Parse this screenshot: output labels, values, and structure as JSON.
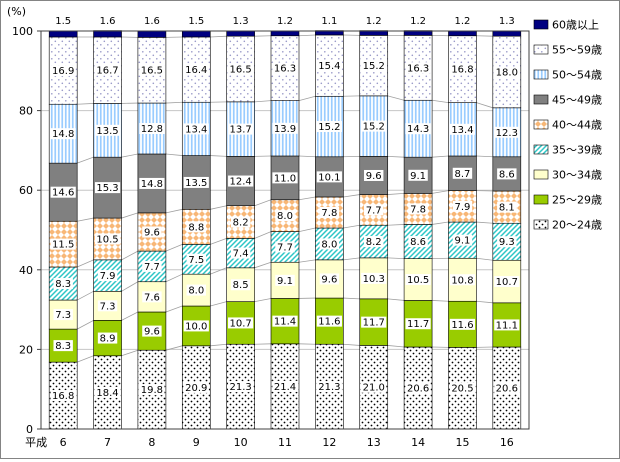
{
  "chart_data": {
    "type": "bar",
    "stacked": true,
    "percent": true,
    "title": "",
    "unit_label": "(%)",
    "x_axis_prefix": "平成",
    "categories": [
      "6",
      "7",
      "8",
      "9",
      "10",
      "11",
      "12",
      "13",
      "14",
      "15",
      "16"
    ],
    "ylim": [
      0,
      100
    ],
    "yticks": [
      0,
      20,
      40,
      60,
      80,
      100
    ],
    "legend_position": "right",
    "grid": true,
    "series_connector_lines": true,
    "label_decimals": 1,
    "series": [
      {
        "name": "20〜24歳",
        "swatch": {
          "pattern": "dots",
          "color": "#000000",
          "bg": "#FFFFFF"
        },
        "values": [
          16.8,
          18.4,
          19.8,
          20.9,
          21.3,
          21.4,
          21.3,
          21.0,
          20.6,
          20.5,
          20.6
        ]
      },
      {
        "name": "25〜29歳",
        "swatch": {
          "pattern": "solid",
          "color": "#99CC00"
        },
        "values": [
          8.3,
          8.9,
          9.6,
          10.0,
          10.7,
          11.4,
          11.6,
          11.7,
          11.7,
          11.6,
          11.1
        ]
      },
      {
        "name": "30〜34歳",
        "swatch": {
          "pattern": "solid",
          "color": "#FFFFCC"
        },
        "values": [
          7.3,
          7.3,
          7.6,
          8.0,
          8.5,
          9.1,
          9.6,
          10.3,
          10.5,
          10.8,
          10.7
        ]
      },
      {
        "name": "35〜39歳",
        "swatch": {
          "pattern": "diag",
          "color": "#2EC6C6",
          "bg": "#FFFFFF"
        },
        "values": [
          8.3,
          7.9,
          7.7,
          7.5,
          7.4,
          7.7,
          8.0,
          8.2,
          8.6,
          9.1,
          9.3
        ]
      },
      {
        "name": "40〜44歳",
        "swatch": {
          "pattern": "diamond",
          "color": "#F8B776",
          "bg": "#FFFFFF"
        },
        "values": [
          11.5,
          10.5,
          9.6,
          8.8,
          8.2,
          8.0,
          7.8,
          7.7,
          7.8,
          7.9,
          8.1
        ]
      },
      {
        "name": "45〜49歳",
        "swatch": {
          "pattern": "solid",
          "color": "#808080"
        },
        "values": [
          14.6,
          15.3,
          14.8,
          13.5,
          12.4,
          11.0,
          10.1,
          9.6,
          9.1,
          8.7,
          8.6
        ]
      },
      {
        "name": "50〜54歳",
        "swatch": {
          "pattern": "vstripe",
          "color": "#99CCFF",
          "bg": "#FFFFFF"
        },
        "values": [
          14.8,
          13.5,
          12.8,
          13.4,
          13.7,
          13.9,
          15.2,
          15.2,
          14.3,
          13.4,
          12.3
        ]
      },
      {
        "name": "55〜59歳",
        "swatch": {
          "pattern": "dots-sparse",
          "color": "#9898C8",
          "bg": "#FFFFFF"
        },
        "values": [
          16.9,
          16.7,
          16.5,
          16.4,
          16.5,
          16.3,
          15.4,
          15.2,
          16.3,
          16.8,
          18.0
        ]
      },
      {
        "name": "60歳以上",
        "swatch": {
          "pattern": "solid",
          "color": "#000080"
        },
        "values": [
          1.5,
          1.6,
          1.6,
          1.5,
          1.3,
          1.2,
          1.1,
          1.2,
          1.2,
          1.2,
          1.3
        ]
      }
    ],
    "colors": {
      "grid": "#C6C6C6",
      "axis": "#404040",
      "connector": "#A0A0A0",
      "bar_border": "#000000",
      "label_text": "#000000",
      "label_bg": "#FFFFFF"
    }
  }
}
